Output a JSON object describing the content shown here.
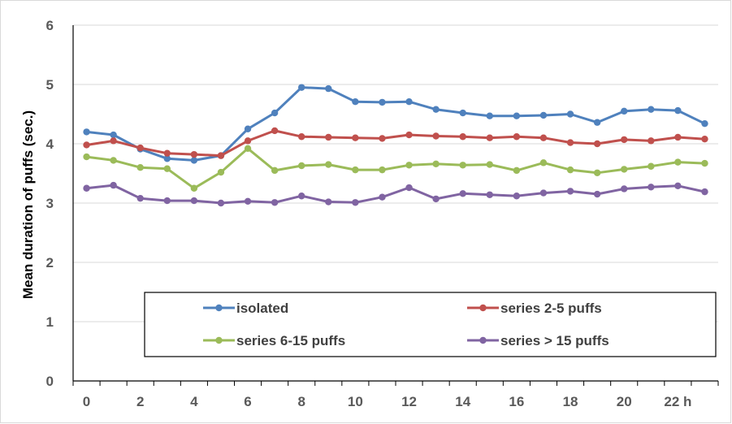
{
  "chart_data": {
    "type": "line",
    "title": "",
    "xlabel": "",
    "ylabel": "Mean duration of puffs (sec.)",
    "x": [
      0,
      1,
      2,
      3,
      4,
      5,
      6,
      7,
      8,
      9,
      10,
      11,
      12,
      13,
      14,
      15,
      16,
      17,
      18,
      19,
      20,
      21,
      22,
      23
    ],
    "x_tick_labels": [
      "0",
      "2",
      "4",
      "6",
      "8",
      "10",
      "12",
      "14",
      "16",
      "18",
      "20",
      "22 h"
    ],
    "x_tick_values": [
      0,
      2,
      4,
      6,
      8,
      10,
      12,
      14,
      16,
      18,
      20,
      22
    ],
    "y_ticks": [
      0,
      1,
      2,
      3,
      4,
      5,
      6
    ],
    "ylim": [
      0,
      6
    ],
    "grid": "horizontal",
    "legend_position": "inside-bottom",
    "series": [
      {
        "name": "isolated",
        "color": "#4f81bd",
        "values": [
          4.2,
          4.15,
          3.91,
          3.75,
          3.72,
          3.8,
          4.25,
          4.52,
          4.95,
          4.93,
          4.71,
          4.7,
          4.71,
          4.58,
          4.52,
          4.47,
          4.47,
          4.48,
          4.5,
          4.36,
          4.55,
          4.58,
          4.56,
          4.34
        ]
      },
      {
        "name": "series 2-5 puffs",
        "color": "#c0504d",
        "values": [
          3.98,
          4.05,
          3.93,
          3.84,
          3.82,
          3.8,
          4.05,
          4.22,
          4.12,
          4.11,
          4.1,
          4.09,
          4.15,
          4.13,
          4.12,
          4.1,
          4.12,
          4.1,
          4.02,
          4.0,
          4.07,
          4.05,
          4.11,
          4.08
        ]
      },
      {
        "name": "series 6-15 puffs",
        "color": "#9bbb59",
        "values": [
          3.78,
          3.72,
          3.6,
          3.58,
          3.25,
          3.52,
          3.92,
          3.55,
          3.63,
          3.65,
          3.56,
          3.56,
          3.64,
          3.66,
          3.64,
          3.65,
          3.55,
          3.68,
          3.56,
          3.51,
          3.57,
          3.62,
          3.69,
          3.67
        ]
      },
      {
        "name": "series > 15 puffs",
        "color": "#8064a2",
        "values": [
          3.25,
          3.3,
          3.08,
          3.04,
          3.04,
          3.0,
          3.03,
          3.01,
          3.12,
          3.02,
          3.01,
          3.1,
          3.26,
          3.07,
          3.16,
          3.14,
          3.12,
          3.17,
          3.2,
          3.15,
          3.24,
          3.27,
          3.29,
          3.19
        ]
      }
    ]
  }
}
